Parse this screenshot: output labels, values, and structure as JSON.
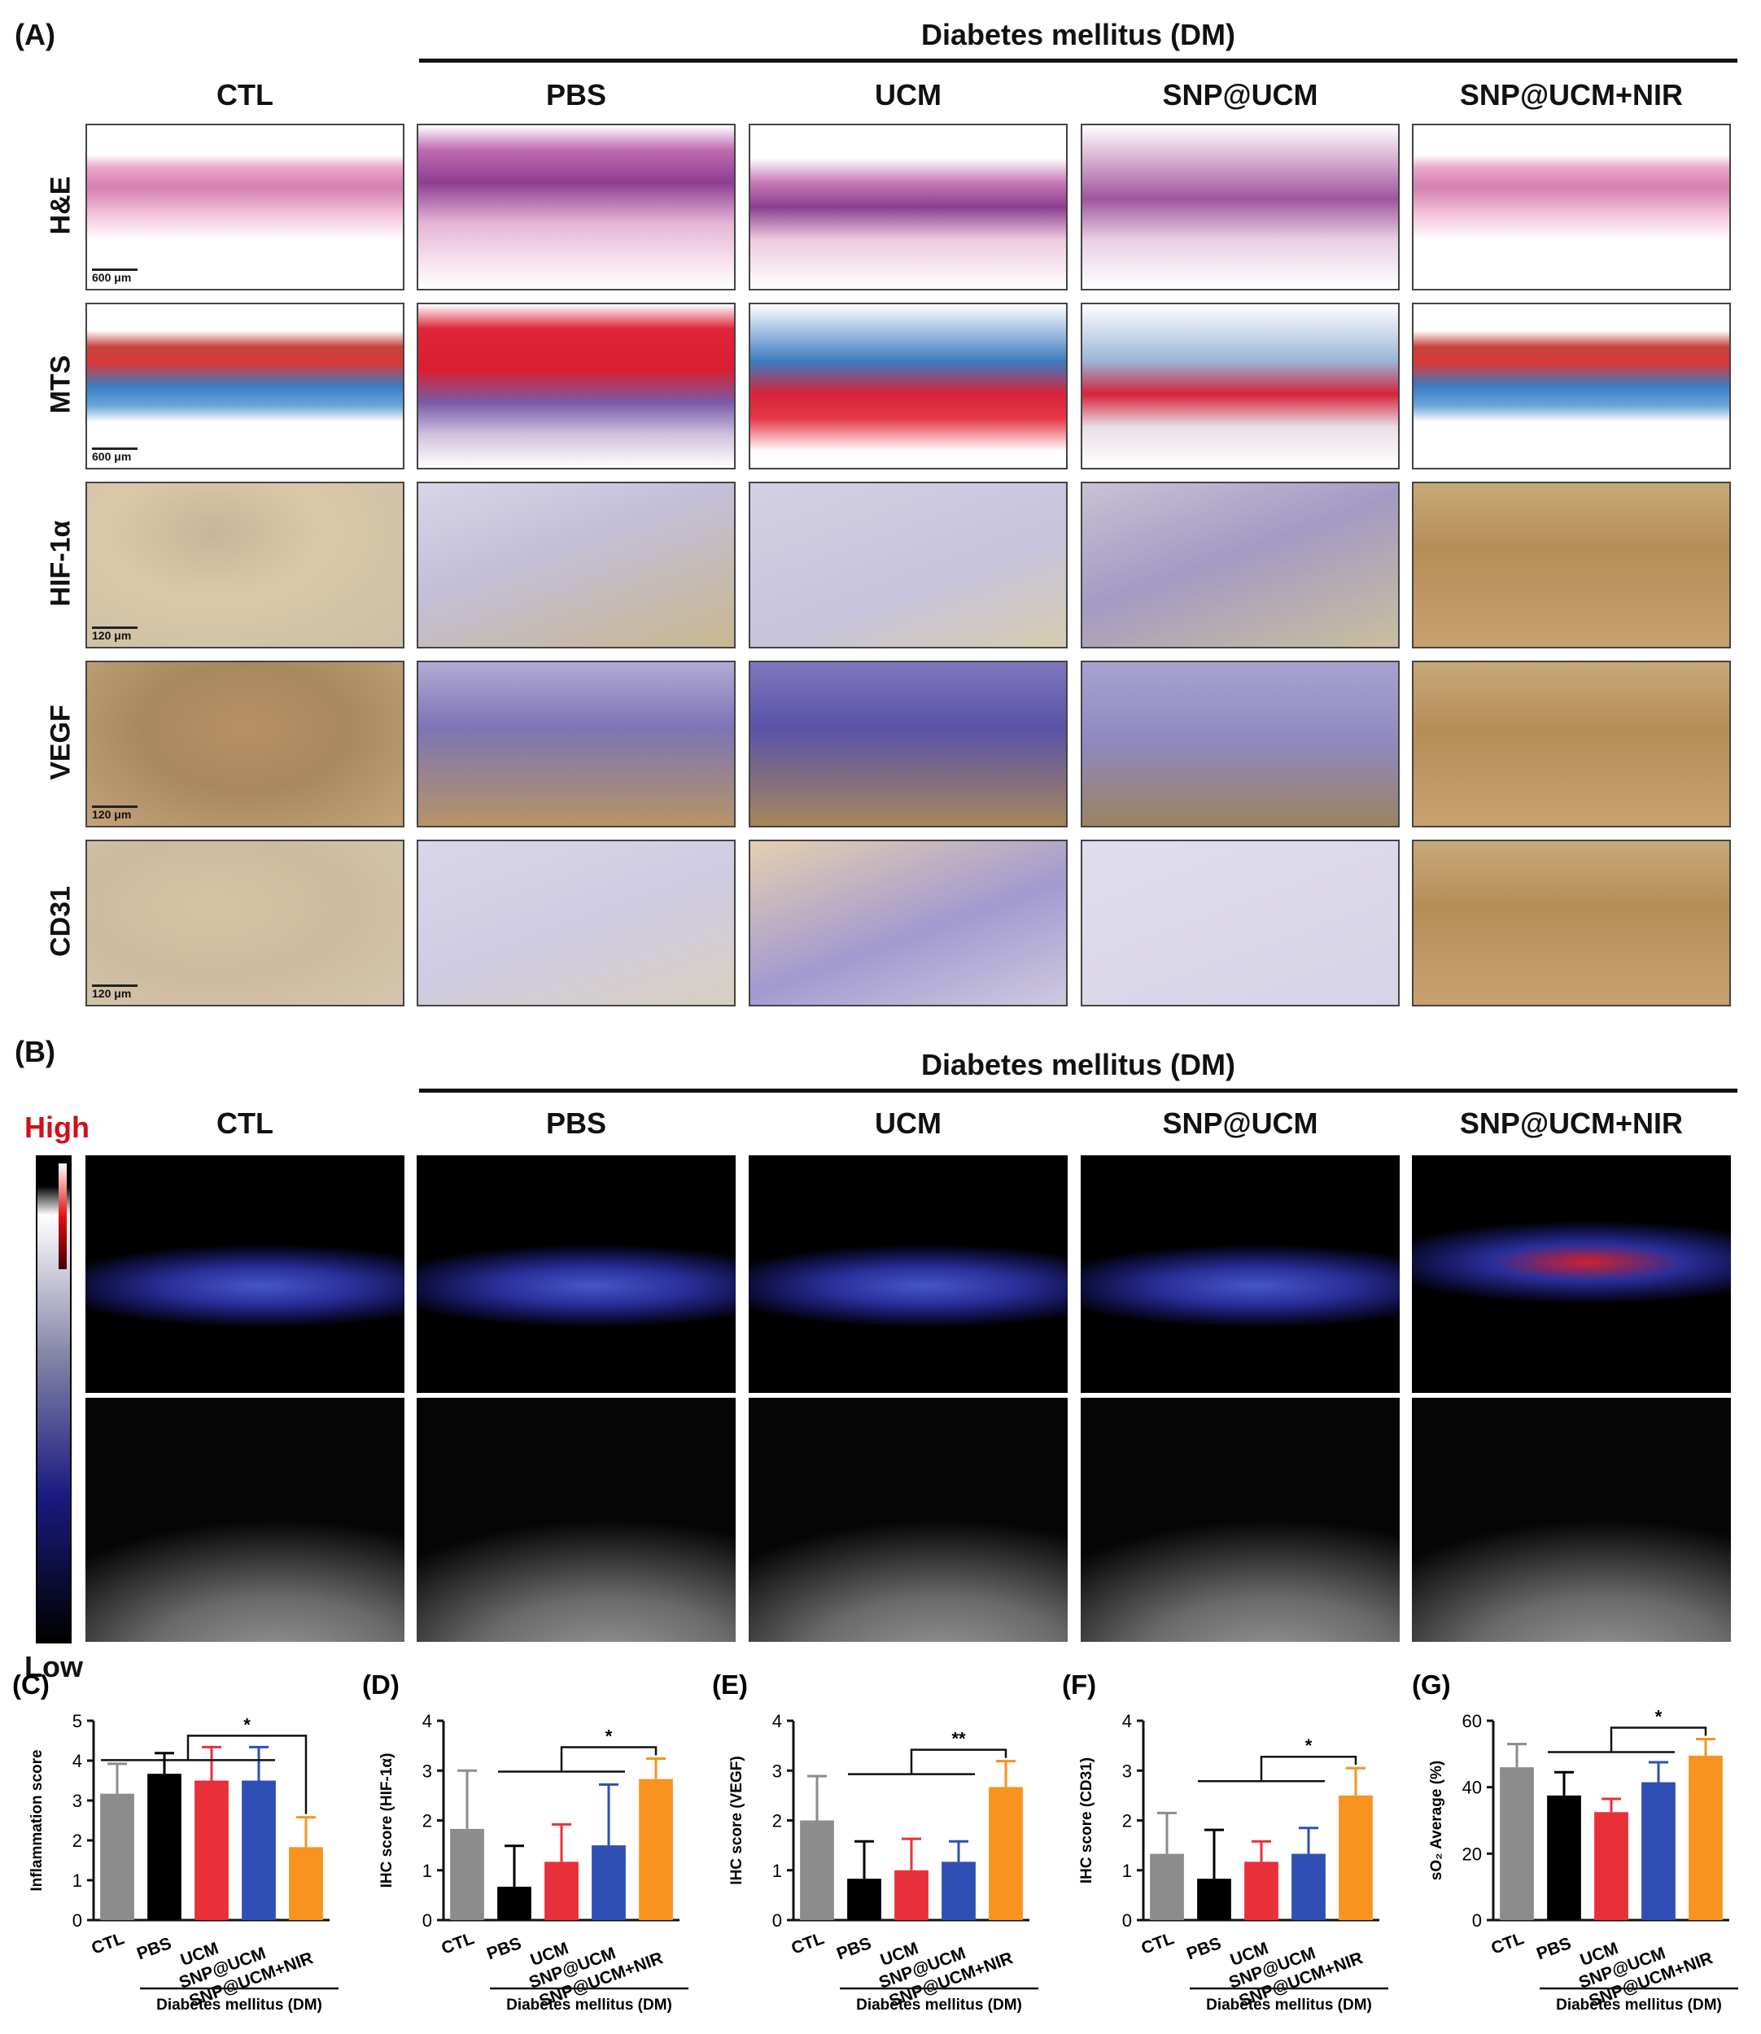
{
  "panelA": {
    "label": "(A)",
    "group_title": "Diabetes mellitus (DM)",
    "columns": [
      "CTL",
      "PBS",
      "UCM",
      "SNP@UCM",
      "SNP@UCM+NIR"
    ],
    "rows": [
      "H&E",
      "MTS",
      "HIF-1α",
      "VEGF",
      "CD31"
    ],
    "scale_bars": [
      "600 μm",
      "600 μm",
      "120 μm",
      "120 μm",
      "120 μm"
    ]
  },
  "panelB": {
    "label": "(B)",
    "group_title": "Diabetes mellitus (DM)",
    "columns": [
      "CTL",
      "PBS",
      "UCM",
      "SNP@UCM",
      "SNP@UCM+NIR"
    ],
    "colorbar_high": "High",
    "colorbar_low": "Low"
  },
  "charts_group_label": "Diabetes mellitus (DM)",
  "colors": {
    "CTL": "#8c8c8c",
    "PBS": "#000000",
    "UCM": "#e8303a",
    "SNP@UCM": "#2f4fb5",
    "SNP@UCM+NIR": "#f7931e",
    "high": "#d0101a"
  },
  "chart_data": [
    {
      "label": "(C)",
      "type": "bar",
      "categories": [
        "CTL",
        "PBS",
        "UCM",
        "SNP@UCM",
        "SNP@UCM+NIR"
      ],
      "values": [
        3.17,
        3.67,
        3.5,
        3.5,
        1.83
      ],
      "errors": [
        0.75,
        0.52,
        0.84,
        0.84,
        0.75
      ],
      "ylabel": "Inflammation score",
      "ylim": [
        0,
        5
      ],
      "yticks": [
        0,
        1,
        2,
        3,
        4,
        5
      ],
      "significance": "*"
    },
    {
      "label": "(D)",
      "type": "bar",
      "categories": [
        "CTL",
        "PBS",
        "UCM",
        "SNP@UCM",
        "SNP@UCM+NIR"
      ],
      "values": [
        1.83,
        0.67,
        1.17,
        1.5,
        2.83
      ],
      "errors": [
        1.17,
        0.82,
        0.75,
        1.22,
        0.41
      ],
      "ylabel": "IHC score (HIF-1α)",
      "ylim": [
        0,
        4
      ],
      "yticks": [
        0,
        1,
        2,
        3,
        4
      ],
      "significance": "*"
    },
    {
      "label": "(E)",
      "type": "bar",
      "categories": [
        "CTL",
        "PBS",
        "UCM",
        "SNP@UCM",
        "SNP@UCM+NIR"
      ],
      "values": [
        2.0,
        0.83,
        1.0,
        1.17,
        2.67
      ],
      "errors": [
        0.89,
        0.75,
        0.63,
        0.41,
        0.52
      ],
      "ylabel": "IHC score (VEGF)",
      "ylim": [
        0,
        4
      ],
      "yticks": [
        0,
        1,
        2,
        3,
        4
      ],
      "significance": "**"
    },
    {
      "label": "(F)",
      "type": "bar",
      "categories": [
        "CTL",
        "PBS",
        "UCM",
        "SNP@UCM",
        "SNP@UCM+NIR"
      ],
      "values": [
        1.33,
        0.83,
        1.17,
        1.33,
        2.5
      ],
      "errors": [
        0.82,
        0.98,
        0.41,
        0.52,
        0.55
      ],
      "ylabel": "IHC score (CD31)",
      "ylim": [
        0,
        4
      ],
      "yticks": [
        0,
        1,
        2,
        3,
        4
      ],
      "significance": "*"
    },
    {
      "label": "(G)",
      "type": "bar",
      "categories": [
        "CTL",
        "PBS",
        "UCM",
        "SNP@UCM",
        "SNP@UCM+NIR"
      ],
      "values": [
        46,
        37.5,
        32.5,
        41.5,
        49.5
      ],
      "errors": [
        7,
        7,
        4,
        6,
        5
      ],
      "ylabel": "sO₂ Average (%)",
      "ylim": [
        0,
        60
      ],
      "yticks": [
        0,
        20,
        40,
        60
      ],
      "significance": "*"
    }
  ]
}
